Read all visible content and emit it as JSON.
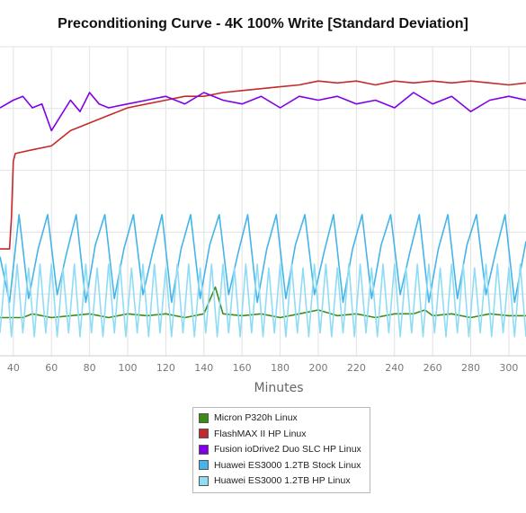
{
  "chart_data": {
    "type": "line",
    "title": "Preconditioning Curve - 4K 100% Write [Standard Deviation]",
    "xlabel": "Minutes",
    "ylabel": "",
    "xlim": [
      33,
      309
    ],
    "x_ticks": [
      40,
      60,
      80,
      100,
      120,
      140,
      160,
      180,
      200,
      220,
      240,
      260,
      280,
      300
    ],
    "grid": true,
    "legend_position": "bottom-center",
    "series": [
      {
        "name": "Micron P320h Linux",
        "color": "#3c8c13",
        "x": [
          33,
          45,
          50,
          60,
          70,
          80,
          90,
          100,
          110,
          120,
          130,
          140,
          146,
          150,
          160,
          170,
          180,
          190,
          200,
          210,
          220,
          230,
          240,
          250,
          256,
          260,
          270,
          280,
          290,
          300,
          309
        ],
        "y": [
          1.6,
          1.6,
          1.7,
          1.6,
          1.65,
          1.7,
          1.6,
          1.7,
          1.65,
          1.7,
          1.6,
          1.7,
          2.4,
          1.7,
          1.65,
          1.7,
          1.6,
          1.7,
          1.8,
          1.65,
          1.7,
          1.6,
          1.7,
          1.7,
          1.8,
          1.65,
          1.7,
          1.6,
          1.7,
          1.65,
          1.65
        ]
      },
      {
        "name": "FlashMAX II HP Linux",
        "color": "#c42a2a",
        "x": [
          33,
          36,
          38,
          39,
          40,
          41,
          50,
          60,
          70,
          80,
          90,
          100,
          110,
          120,
          130,
          140,
          150,
          160,
          170,
          180,
          190,
          200,
          210,
          220,
          230,
          240,
          250,
          260,
          270,
          280,
          290,
          300,
          309
        ],
        "y": [
          3.4,
          3.4,
          3.4,
          4.2,
          5.7,
          5.9,
          6.0,
          6.1,
          6.5,
          6.7,
          6.9,
          7.1,
          7.2,
          7.3,
          7.4,
          7.4,
          7.5,
          7.55,
          7.6,
          7.65,
          7.7,
          7.8,
          7.75,
          7.8,
          7.7,
          7.8,
          7.75,
          7.8,
          7.75,
          7.8,
          7.75,
          7.7,
          7.75
        ]
      },
      {
        "name": "Fusion ioDrive2 Duo SLC HP Linux",
        "color": "#7f00e8",
        "x": [
          33,
          40,
          45,
          50,
          55,
          60,
          65,
          70,
          75,
          80,
          85,
          90,
          100,
          110,
          120,
          130,
          140,
          150,
          160,
          170,
          180,
          190,
          200,
          210,
          220,
          230,
          240,
          250,
          260,
          270,
          280,
          290,
          300,
          309
        ],
        "y": [
          7.1,
          7.3,
          7.4,
          7.1,
          7.2,
          6.5,
          6.9,
          7.3,
          7.0,
          7.5,
          7.2,
          7.1,
          7.2,
          7.3,
          7.4,
          7.2,
          7.5,
          7.3,
          7.2,
          7.4,
          7.1,
          7.4,
          7.3,
          7.4,
          7.2,
          7.3,
          7.1,
          7.5,
          7.2,
          7.4,
          7.0,
          7.3,
          7.4,
          7.3
        ]
      },
      {
        "name": "Huawei ES3000 1.2TB Stock Linux",
        "color": "#45b4e8",
        "x": [
          33,
          38,
          43,
          48,
          53,
          58,
          63,
          68,
          73,
          78,
          83,
          88,
          93,
          98,
          103,
          108,
          113,
          118,
          123,
          128,
          133,
          138,
          143,
          148,
          153,
          158,
          163,
          168,
          173,
          178,
          183,
          188,
          193,
          198,
          203,
          208,
          213,
          218,
          223,
          228,
          233,
          238,
          243,
          248,
          253,
          258,
          263,
          268,
          273,
          278,
          283,
          288,
          293,
          298,
          303,
          309
        ],
        "y": [
          3.2,
          2.0,
          4.3,
          2.1,
          3.4,
          4.3,
          2.2,
          3.3,
          4.3,
          2.0,
          3.5,
          4.3,
          2.1,
          3.4,
          4.3,
          2.2,
          3.3,
          4.3,
          2.0,
          3.4,
          4.3,
          2.1,
          3.5,
          4.3,
          2.2,
          3.3,
          4.3,
          2.0,
          3.4,
          4.3,
          2.1,
          3.5,
          4.3,
          2.2,
          3.3,
          4.3,
          2.0,
          3.4,
          4.3,
          2.1,
          3.5,
          4.3,
          2.2,
          3.3,
          4.3,
          2.0,
          3.4,
          4.3,
          2.1,
          3.5,
          4.3,
          2.2,
          3.3,
          4.3,
          2.0,
          3.6
        ]
      },
      {
        "name": "Huawei ES3000 1.2TB HP Linux",
        "color": "#8fdcf5",
        "x": [
          33,
          36,
          39,
          42,
          45,
          48,
          51,
          54,
          57,
          60,
          63,
          66,
          69,
          72,
          75,
          78,
          81,
          84,
          87,
          90,
          93,
          96,
          99,
          102,
          105,
          108,
          111,
          114,
          117,
          120,
          123,
          126,
          129,
          132,
          135,
          138,
          141,
          144,
          147,
          150,
          153,
          156,
          159,
          162,
          165,
          168,
          171,
          174,
          177,
          180,
          183,
          186,
          189,
          192,
          195,
          198,
          201,
          204,
          207,
          210,
          213,
          216,
          219,
          222,
          225,
          228,
          231,
          234,
          237,
          240,
          243,
          246,
          249,
          252,
          255,
          258,
          261,
          264,
          267,
          270,
          273,
          276,
          279,
          282,
          285,
          288,
          291,
          294,
          297,
          300,
          303,
          306,
          309
        ],
        "y": [
          1.2,
          3.0,
          1.1,
          3.0,
          1.2,
          2.9,
          1.1,
          3.0,
          1.2,
          3.0,
          1.1,
          2.9,
          1.2,
          3.0,
          1.1,
          3.0,
          1.2,
          2.9,
          1.1,
          3.0,
          1.2,
          3.0,
          1.1,
          2.9,
          1.2,
          3.0,
          1.1,
          3.0,
          1.2,
          2.9,
          1.1,
          3.0,
          1.2,
          3.0,
          1.1,
          2.9,
          1.2,
          3.0,
          1.1,
          3.0,
          1.2,
          2.9,
          1.1,
          3.0,
          1.2,
          3.0,
          1.1,
          2.9,
          1.2,
          3.0,
          1.1,
          3.0,
          1.2,
          2.9,
          1.1,
          3.0,
          1.2,
          3.0,
          1.1,
          2.9,
          1.2,
          3.0,
          1.1,
          3.0,
          1.2,
          2.9,
          1.1,
          3.0,
          1.2,
          3.0,
          1.1,
          2.9,
          1.2,
          3.0,
          1.1,
          3.0,
          1.2,
          2.9,
          1.1,
          3.0,
          1.2,
          3.0,
          1.1,
          2.9,
          1.2,
          3.0,
          1.1,
          3.0,
          1.2,
          2.9,
          1.1,
          3.0,
          1.1
        ]
      }
    ]
  }
}
